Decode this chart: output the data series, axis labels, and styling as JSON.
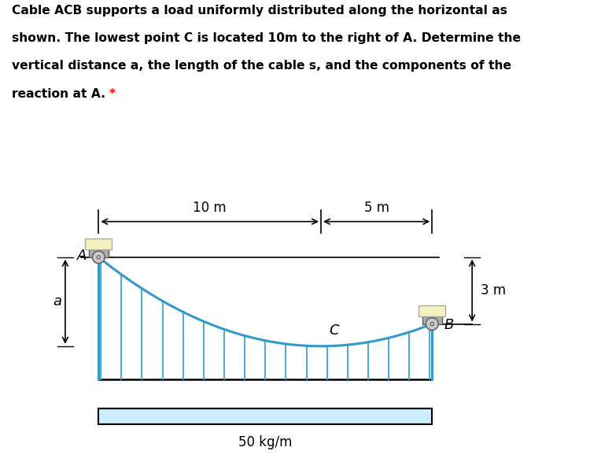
{
  "title_text": "Cable ACB supports a load uniformly distributed along the horizontal as\nshown. The lowest point C is located 10m to the right of A. Determine the\nvertical distance a, the length of the cable s, and the components of the\nreaction at A. *",
  "title_color": "#000000",
  "bg_color": "#ffffff",
  "cable_color": "#3399cc",
  "cable_lw": 2.2,
  "dim_line_color": "#000000",
  "load_line_color": "#3399cc",
  "box_face_color": "#f5f0c0",
  "box_edge_color": "#aaaaaa",
  "pulley_face": "#c8c8c8",
  "pulley_edge": "#666666",
  "beam_color": "#000000",
  "dist_load_fill": "#cceeff",
  "label_A": "A",
  "label_B": "B",
  "label_C": "C",
  "label_a": "a",
  "label_10m": "10 m",
  "label_5m": "5 m",
  "label_3m": "3 m",
  "label_load": "50 kg/m",
  "fig_width": 7.5,
  "fig_height": 5.87,
  "dpi": 100,
  "xlim": [
    -2.8,
    21.0
  ],
  "ylim": [
    -9.0,
    4.5
  ]
}
